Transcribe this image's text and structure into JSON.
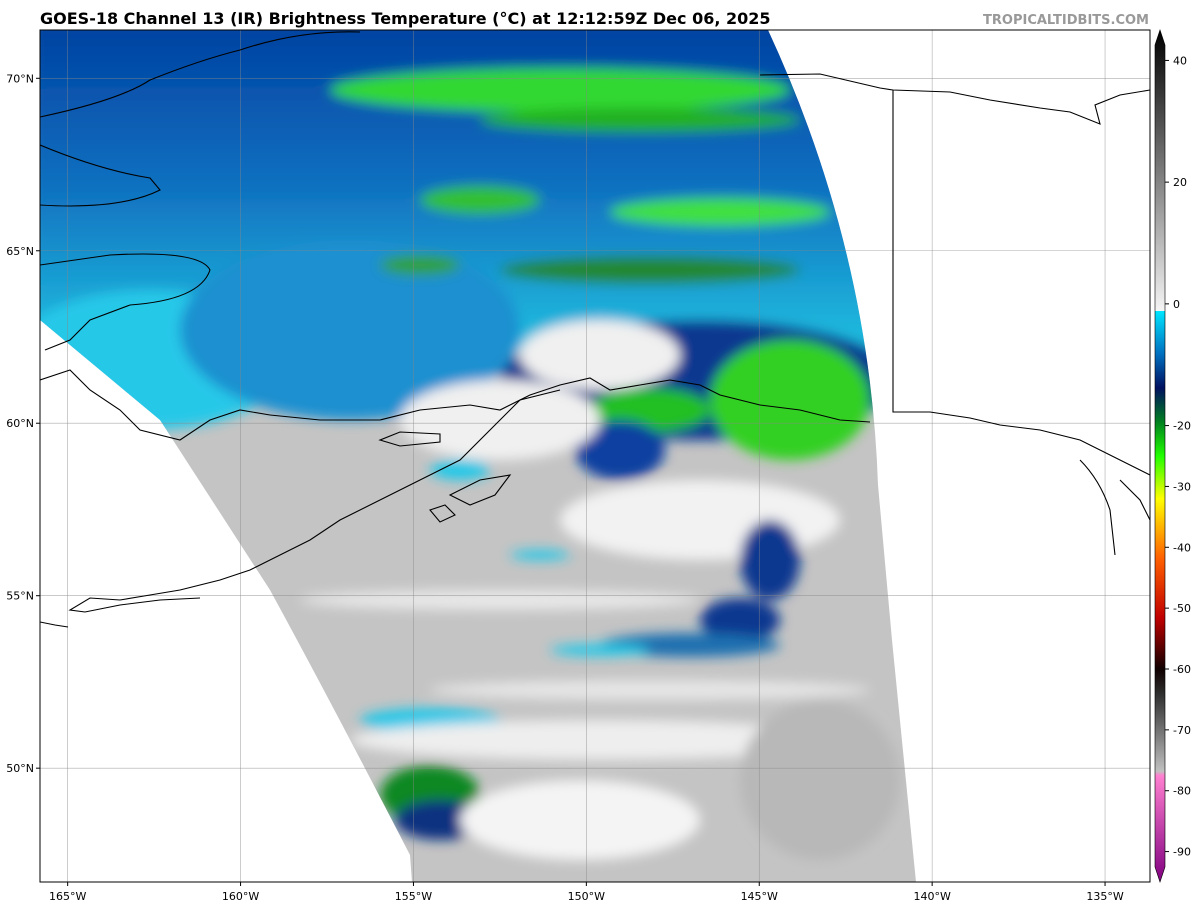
{
  "title": "GOES-18 Channel 13 (IR) Brightness Temperature (°C) at 12:12:59Z Dec 06, 2025",
  "watermark": "TROPICALTIDBITS.COM",
  "map": {
    "lon_range": [
      -165.8,
      -133.7
    ],
    "lat_range": [
      46.7,
      71.4
    ],
    "lon_ticks": [
      {
        "value": -165,
        "label": "165°W"
      },
      {
        "value": -160,
        "label": "160°W"
      },
      {
        "value": -155,
        "label": "155°W"
      },
      {
        "value": -150,
        "label": "150°W"
      },
      {
        "value": -145,
        "label": "145°W"
      },
      {
        "value": -140,
        "label": "140°W"
      },
      {
        "value": -135,
        "label": "135°W"
      }
    ],
    "lat_ticks": [
      {
        "value": 70,
        "label": "70°N"
      },
      {
        "value": 65,
        "label": "65°N"
      },
      {
        "value": 60,
        "label": "60°N"
      },
      {
        "value": 55,
        "label": "55°N"
      },
      {
        "value": 50,
        "label": "50°N"
      }
    ]
  },
  "colorbar": {
    "range": [
      -95,
      45
    ],
    "ticks": [
      40,
      20,
      0,
      -20,
      -30,
      -40,
      -50,
      -60,
      -70,
      -80,
      -90
    ]
  }
}
